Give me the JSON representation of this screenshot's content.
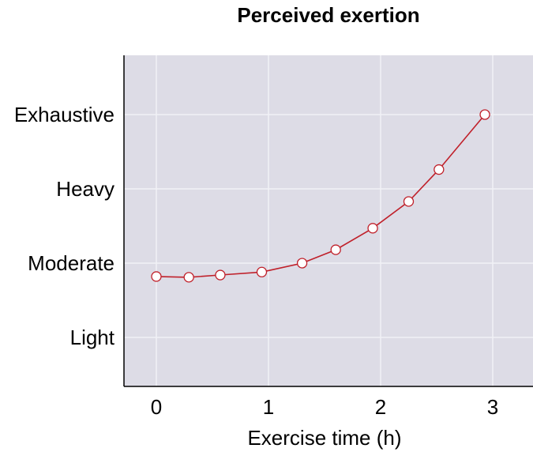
{
  "chart_data": {
    "type": "line",
    "title": "Perceived exertion",
    "xlabel": "Exercise time (h)",
    "ylabel": "",
    "xlim": [
      -0.3,
      3.35
    ],
    "ylim": [
      0.35,
      4.8
    ],
    "x_ticks": [
      {
        "value": 0,
        "label": "0"
      },
      {
        "value": 1,
        "label": "1"
      },
      {
        "value": 2,
        "label": "2"
      },
      {
        "value": 3,
        "label": "3"
      }
    ],
    "y_ticks": [
      {
        "value": 1,
        "label": "Light"
      },
      {
        "value": 2,
        "label": "Moderate"
      },
      {
        "value": 3,
        "label": "Heavy"
      },
      {
        "value": 4,
        "label": "Exhaustive"
      }
    ],
    "grid": true,
    "series": [
      {
        "x": [
          0,
          0.29,
          0.57,
          0.94,
          1.3,
          1.6,
          1.93,
          2.25,
          2.52,
          2.93
        ],
        "y": [
          1.82,
          1.81,
          1.84,
          1.88,
          2.0,
          2.18,
          2.47,
          2.83,
          3.26,
          4.0
        ]
      }
    ],
    "colors": {
      "plot_background": "#DDDCE6",
      "grid": "#F2F2F6",
      "line": "#C0202A",
      "marker_fill": "#FFFFFF",
      "axis": "#000000"
    }
  }
}
